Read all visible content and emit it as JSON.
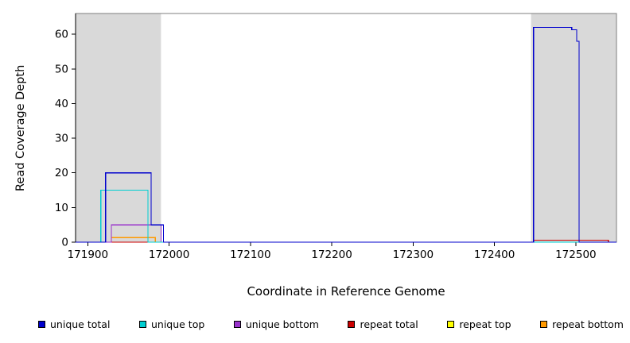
{
  "chart_data": {
    "type": "line",
    "title": "",
    "xlabel": "Coordinate in Reference Genome",
    "ylabel": "Read Coverage Depth",
    "xlim": [
      171885,
      172550
    ],
    "ylim": [
      0,
      66
    ],
    "x_ticks": [
      171900,
      172000,
      172100,
      172200,
      172300,
      172400,
      172500
    ],
    "y_ticks": [
      0,
      10,
      20,
      30,
      40,
      50,
      60
    ],
    "grid": false,
    "legend_position": "bottom",
    "box_color": "#7f7f7f",
    "axis_color": "#000000",
    "shaded_regions": [
      {
        "name": "repeat-region-left",
        "x0": 171885,
        "x1": 171990,
        "color": "#d9d9d9"
      },
      {
        "name": "repeat-region-right",
        "x0": 172445,
        "x1": 172550,
        "color": "#d9d9d9"
      }
    ],
    "series": [
      {
        "name": "unique total",
        "color": "#0000CD",
        "points": [
          [
            171885,
            0
          ],
          [
            171922,
            0
          ],
          [
            171922,
            20
          ],
          [
            171978,
            20
          ],
          [
            171978,
            5
          ],
          [
            171993,
            5
          ],
          [
            171993,
            0
          ],
          [
            172448,
            0
          ],
          [
            172448,
            62
          ],
          [
            172495,
            62
          ],
          [
            172495,
            61.3
          ],
          [
            172501,
            61.3
          ],
          [
            172501,
            58
          ],
          [
            172504,
            58
          ],
          [
            172504,
            0
          ],
          [
            172550,
            0
          ]
        ]
      },
      {
        "name": "unique top",
        "color": "#00CED1",
        "points": [
          [
            171885,
            0
          ],
          [
            171916,
            0
          ],
          [
            171916,
            15
          ],
          [
            171974,
            15
          ],
          [
            171974,
            0
          ],
          [
            172550,
            0
          ]
        ]
      },
      {
        "name": "unique bottom",
        "color": "#9932CC",
        "points": [
          [
            171885,
            0
          ],
          [
            171929,
            0
          ],
          [
            171929,
            5
          ],
          [
            171990,
            5
          ],
          [
            171990,
            0
          ],
          [
            172550,
            0
          ]
        ]
      },
      {
        "name": "repeat total",
        "color": "#CC0000",
        "points": [
          [
            171885,
            0
          ],
          [
            172448,
            0
          ],
          [
            172448,
            0.6
          ],
          [
            172540,
            0.6
          ],
          [
            172540,
            0
          ],
          [
            172550,
            0
          ]
        ]
      },
      {
        "name": "repeat top",
        "color": "#FFFF00",
        "points": [
          [
            171885,
            0
          ],
          [
            172550,
            0
          ]
        ]
      },
      {
        "name": "repeat bottom",
        "color": "#FF9900",
        "points": [
          [
            171885,
            0
          ],
          [
            171929,
            0
          ],
          [
            171929,
            1.3
          ],
          [
            171983,
            1.3
          ],
          [
            171983,
            0
          ],
          [
            172550,
            0
          ]
        ]
      }
    ]
  }
}
